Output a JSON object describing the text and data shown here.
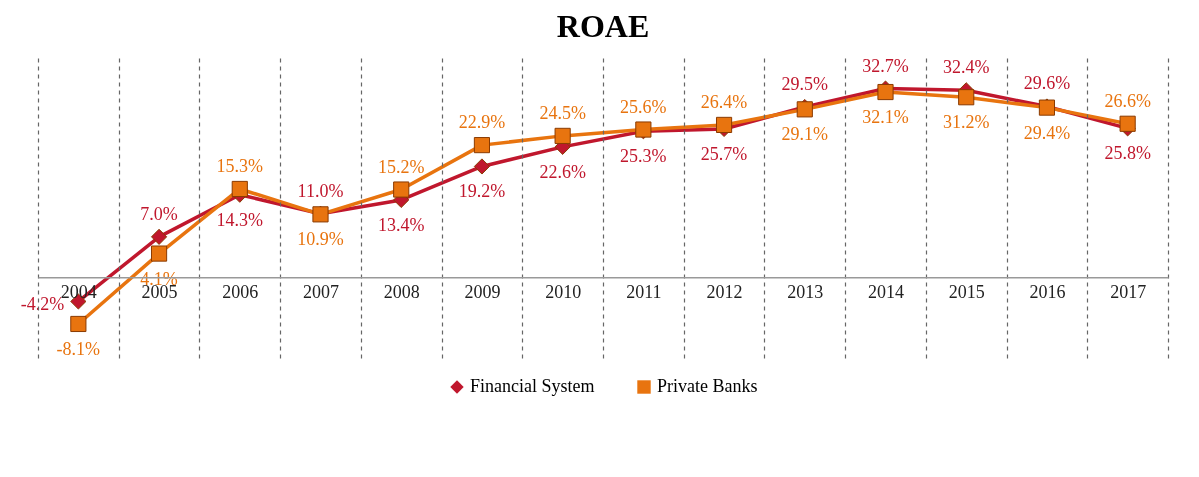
{
  "chart_data": {
    "type": "line",
    "title": "ROAE",
    "categories": [
      "2004",
      "2005",
      "2006",
      "2007",
      "2008",
      "2009",
      "2010",
      "2011",
      "2012",
      "2013",
      "2014",
      "2015",
      "2016",
      "2017"
    ],
    "series": [
      {
        "name": "Financial System",
        "color": "#c0172d",
        "marker": "diamond",
        "values": [
          -4.2,
          7.0,
          14.3,
          11.0,
          13.4,
          19.2,
          22.6,
          25.3,
          25.7,
          29.5,
          32.7,
          32.4,
          29.6,
          25.8
        ],
        "value_labels": [
          "-4.2%",
          "7.0%",
          "14.3%",
          "11.0%",
          "13.4%",
          "19.2%",
          "22.6%",
          "25.3%",
          "25.7%",
          "29.5%",
          "32.7%",
          "32.4%",
          "29.6%",
          "25.8%"
        ]
      },
      {
        "name": "Private Banks",
        "color": "#e8740f",
        "marker": "square",
        "values": [
          -8.1,
          4.1,
          15.3,
          10.9,
          15.2,
          22.9,
          24.5,
          25.6,
          26.4,
          29.1,
          32.1,
          31.2,
          29.4,
          26.6
        ],
        "value_labels": [
          "-8.1%",
          "4.1%",
          "15.3%",
          "10.9%",
          "15.2%",
          "22.9%",
          "24.5%",
          "25.6%",
          "26.4%",
          "29.1%",
          "32.1%",
          "31.2%",
          "29.4%",
          "26.6%"
        ]
      }
    ],
    "ylim": [
      -14,
      38
    ],
    "tick_labels": "x",
    "grid": "x",
    "legend": "bottom",
    "line_style": "solid"
  }
}
